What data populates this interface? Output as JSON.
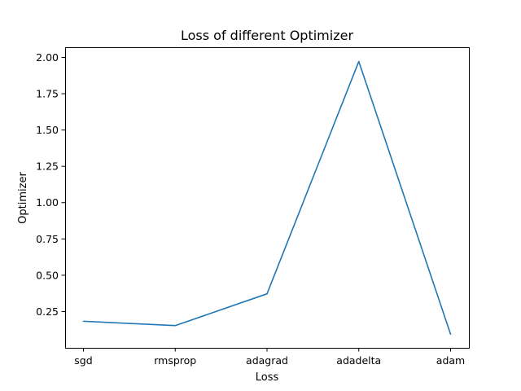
{
  "chart_data": {
    "type": "line",
    "title": "Loss of different Optimizer",
    "xlabel": "Loss",
    "ylabel": "Optimizer",
    "categories": [
      "sgd",
      "rmsprop",
      "adagrad",
      "adadelta",
      "adam"
    ],
    "series": [
      {
        "values": [
          0.183,
          0.153,
          0.372,
          1.972,
          0.094
        ],
        "color": "#1f77b4"
      }
    ],
    "ylim": [
      0.0,
      2.07
    ],
    "yticks": [
      0.25,
      0.5,
      0.75,
      1.0,
      1.25,
      1.5,
      1.75,
      2.0
    ],
    "ytick_labels": [
      "0.25",
      "0.50",
      "0.75",
      "1.00",
      "1.25",
      "1.50",
      "1.75",
      "2.00"
    ],
    "grid": false,
    "legend": "none"
  }
}
